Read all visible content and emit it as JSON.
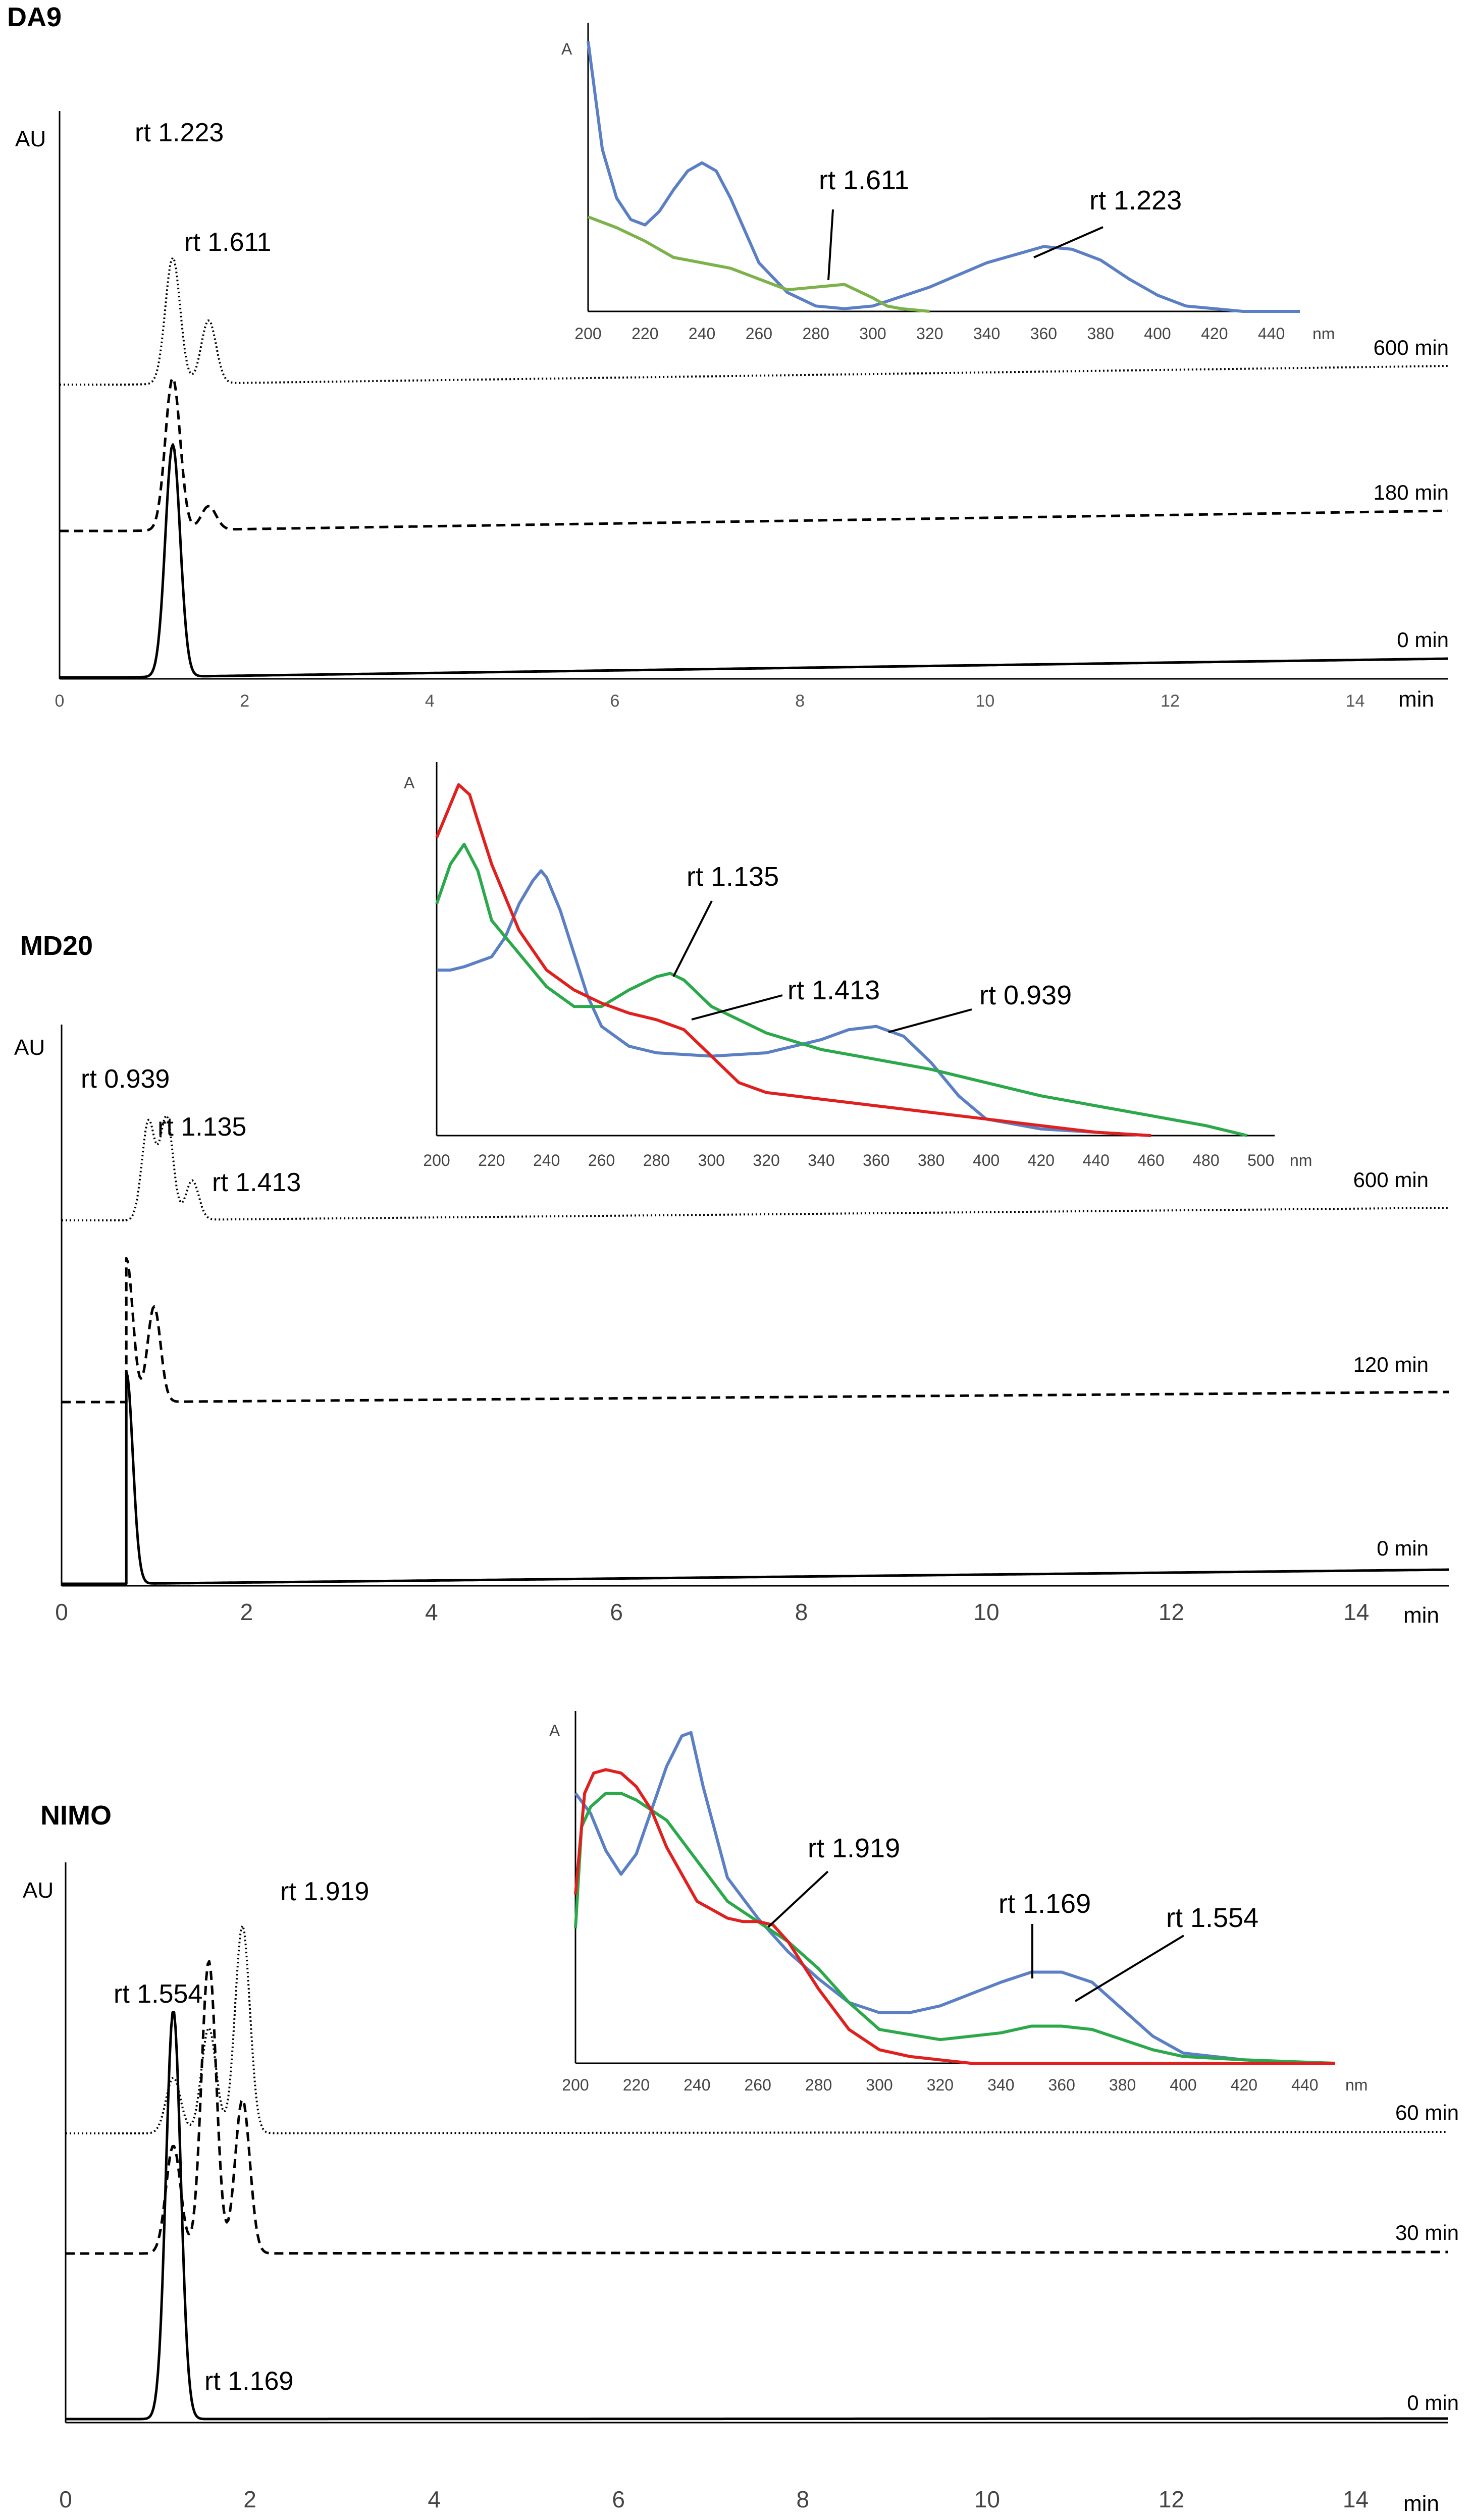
{
  "chart_data": [
    {
      "type": "line",
      "title": "DA9",
      "ylabel": "AU",
      "xlabel": "min",
      "xlim": [
        0,
        15
      ],
      "xticks": [
        "0",
        "2",
        "4",
        "6",
        "8",
        "10",
        "12",
        "14"
      ],
      "series": [
        {
          "name": "0 min",
          "style": "solid",
          "peaks": [
            {
              "rt": 1.223,
              "h": 1.0
            }
          ]
        },
        {
          "name": "180 min",
          "style": "dashed",
          "peaks": [
            {
              "rt": 1.223,
              "h": 0.58
            },
            {
              "rt": 1.611,
              "h": 0.09
            }
          ]
        },
        {
          "name": "600 min",
          "style": "dotted",
          "peaks": [
            {
              "rt": 1.223,
              "h": 0.5
            },
            {
              "rt": 1.611,
              "h": 0.25
            }
          ]
        }
      ],
      "annotations": [
        "rt 1.223",
        "rt 1.611"
      ],
      "inset": {
        "type": "line",
        "ylabel": "A",
        "xlabel": "nm",
        "xlim": [
          200,
          450
        ],
        "xticks": [
          "200",
          "220",
          "240",
          "260",
          "280",
          "300",
          "320",
          "340",
          "360",
          "380",
          "400",
          "420",
          "440"
        ],
        "series": [
          {
            "name": "rt 1.223",
            "color": "#5b7fc4",
            "x": [
              200,
              205,
              210,
              215,
              220,
              225,
              230,
              235,
              240,
              245,
              250,
              255,
              260,
              270,
              280,
              290,
              300,
              320,
              340,
              360,
              370,
              380,
              390,
              400,
              410,
              420,
              430,
              440,
              450
            ],
            "y": [
              1.0,
              0.6,
              0.42,
              0.34,
              0.32,
              0.37,
              0.45,
              0.52,
              0.55,
              0.52,
              0.42,
              0.3,
              0.18,
              0.07,
              0.02,
              0.01,
              0.02,
              0.09,
              0.18,
              0.24,
              0.23,
              0.19,
              0.12,
              0.06,
              0.02,
              0.01,
              0.0,
              0.0,
              0.0
            ]
          },
          {
            "name": "rt 1.611",
            "color": "#7db24a",
            "x": [
              200,
              210,
              220,
              230,
              240,
              250,
              260,
              270,
              280,
              290,
              300,
              305,
              310,
              320
            ],
            "y": [
              0.35,
              0.31,
              0.26,
              0.2,
              0.18,
              0.16,
              0.12,
              0.08,
              0.09,
              0.1,
              0.05,
              0.02,
              0.01,
              0.0
            ]
          }
        ],
        "annotations": [
          "rt 1.611",
          "rt 1.223"
        ]
      }
    },
    {
      "type": "line",
      "title": "MD20",
      "ylabel": "AU",
      "xlabel": "min",
      "xlim": [
        0,
        15
      ],
      "xticks": [
        "0",
        "2",
        "4",
        "6",
        "8",
        "10",
        "12",
        "14"
      ],
      "series": [
        {
          "name": "0 min",
          "style": "solid",
          "peaks": [
            {
              "rt": 0.7,
              "h": 1.0
            }
          ]
        },
        {
          "name": "120 min",
          "style": "dashed",
          "peaks": [
            {
              "rt": 0.7,
              "h": 0.95
            },
            {
              "rt": 1.0,
              "h": 0.63
            }
          ]
        },
        {
          "name": "600 min",
          "style": "dotted",
          "peaks": [
            {
              "rt": 0.939,
              "h": 0.75
            },
            {
              "rt": 1.135,
              "h": 0.78
            },
            {
              "rt": 1.413,
              "h": 0.3
            }
          ]
        }
      ],
      "annotations": [
        "rt 0.939",
        "rt 1.135",
        "rt 1.413"
      ],
      "inset": {
        "type": "line",
        "ylabel": "A",
        "xlabel": "nm",
        "xlim": [
          200,
          505
        ],
        "xticks": [
          "200",
          "220",
          "240",
          "260",
          "280",
          "300",
          "320",
          "340",
          "360",
          "380",
          "400",
          "420",
          "440",
          "460",
          "480",
          "500"
        ],
        "series": [
          {
            "name": "rt 0.939",
            "color": "#5b7fc4",
            "x": [
              200,
              205,
              210,
              220,
              225,
              230,
              235,
              238,
              240,
              245,
              250,
              255,
              260,
              270,
              280,
              300,
              320,
              340,
              350,
              360,
              370,
              380,
              390,
              400,
              420,
              440,
              460
            ],
            "y": [
              0.5,
              0.5,
              0.51,
              0.54,
              0.6,
              0.7,
              0.77,
              0.8,
              0.78,
              0.68,
              0.55,
              0.42,
              0.33,
              0.27,
              0.25,
              0.24,
              0.25,
              0.29,
              0.32,
              0.33,
              0.3,
              0.22,
              0.12,
              0.05,
              0.02,
              0.01,
              0.0
            ]
          },
          {
            "name": "rt 1.135",
            "color": "#2aa84a",
            "x": [
              200,
              205,
              210,
              215,
              220,
              230,
              240,
              250,
              260,
              270,
              280,
              285,
              290,
              300,
              320,
              340,
              360,
              380,
              400,
              420,
              440,
              460,
              480,
              495
            ],
            "y": [
              0.7,
              0.82,
              0.88,
              0.8,
              0.65,
              0.55,
              0.45,
              0.39,
              0.39,
              0.44,
              0.48,
              0.49,
              0.47,
              0.39,
              0.31,
              0.26,
              0.23,
              0.2,
              0.16,
              0.12,
              0.09,
              0.06,
              0.03,
              0.0
            ]
          },
          {
            "name": "rt 1.413",
            "color": "#e0201e",
            "x": [
              200,
              205,
              208,
              212,
              215,
              220,
              230,
              240,
              250,
              260,
              270,
              280,
              290,
              300,
              310,
              320,
              340,
              360,
              380,
              400,
              420,
              440,
              460
            ],
            "y": [
              0.9,
              1.0,
              1.06,
              1.03,
              0.95,
              0.82,
              0.62,
              0.5,
              0.44,
              0.4,
              0.37,
              0.35,
              0.32,
              0.24,
              0.16,
              0.13,
              0.11,
              0.09,
              0.07,
              0.05,
              0.03,
              0.01,
              0.0
            ]
          }
        ],
        "annotations": [
          "rt 1.135",
          "rt 1.413",
          "rt 0.939"
        ]
      }
    },
    {
      "type": "line",
      "title": "NIMO",
      "ylabel": "AU",
      "xlabel": "min",
      "xlim": [
        0,
        15
      ],
      "xticks": [
        "0",
        "2",
        "4",
        "6",
        "8",
        "10",
        "12",
        "14"
      ],
      "series": [
        {
          "name": "0 min",
          "style": "solid",
          "peaks": [
            {
              "rt": 1.169,
              "h": 1.0
            }
          ]
        },
        {
          "name": "30 min",
          "style": "dashed",
          "peaks": [
            {
              "rt": 1.169,
              "h": 0.35
            },
            {
              "rt": 1.554,
              "h": 0.95
            },
            {
              "rt": 1.919,
              "h": 0.5
            }
          ]
        },
        {
          "name": "60 min",
          "style": "dotted",
          "peaks": [
            {
              "rt": 1.169,
              "h": 0.19
            },
            {
              "rt": 1.554,
              "h": 0.36
            },
            {
              "rt": 1.919,
              "h": 0.71
            }
          ]
        }
      ],
      "annotations": [
        "rt 1.919",
        "rt 1.554",
        "rt 1.169"
      ],
      "inset": {
        "type": "line",
        "ylabel": "A",
        "xlabel": "nm",
        "xlim": [
          200,
          450
        ],
        "xticks": [
          "200",
          "220",
          "240",
          "260",
          "280",
          "300",
          "320",
          "340",
          "360",
          "380",
          "400",
          "420",
          "440"
        ],
        "series": [
          {
            "name": "rt 1.169",
            "color": "#5b7fc4",
            "x": [
              200,
              205,
              210,
              215,
              220,
              225,
              230,
              235,
              238,
              242,
              250,
              260,
              270,
              280,
              290,
              300,
              310,
              320,
              340,
              350,
              360,
              370,
              380,
              390,
              400,
              420,
              440,
              450
            ],
            "y": [
              0.8,
              0.74,
              0.63,
              0.56,
              0.62,
              0.75,
              0.88,
              0.97,
              0.98,
              0.82,
              0.55,
              0.43,
              0.33,
              0.25,
              0.18,
              0.15,
              0.15,
              0.17,
              0.24,
              0.27,
              0.27,
              0.24,
              0.16,
              0.08,
              0.03,
              0.01,
              0.0,
              0.0
            ]
          },
          {
            "name": "rt 1.554",
            "color": "#2aa84a",
            "x": [
              200,
              202,
              205,
              210,
              215,
              220,
              230,
              240,
              250,
              260,
              270,
              280,
              290,
              300,
              320,
              340,
              350,
              360,
              370,
              380,
              390,
              400,
              420,
              450
            ],
            "y": [
              0.4,
              0.7,
              0.76,
              0.8,
              0.8,
              0.78,
              0.72,
              0.6,
              0.48,
              0.42,
              0.36,
              0.28,
              0.18,
              0.1,
              0.07,
              0.09,
              0.11,
              0.11,
              0.1,
              0.07,
              0.04,
              0.02,
              0.01,
              0.0
            ]
          },
          {
            "name": "rt 1.919",
            "color": "#e0201e",
            "x": [
              200,
              203,
              206,
              210,
              215,
              220,
              225,
              230,
              240,
              250,
              255,
              260,
              265,
              270,
              280,
              290,
              300,
              310,
              320,
              330,
              340,
              350,
              360,
              450
            ],
            "y": [
              0.5,
              0.8,
              0.86,
              0.87,
              0.86,
              0.82,
              0.75,
              0.64,
              0.48,
              0.43,
              0.42,
              0.42,
              0.41,
              0.36,
              0.22,
              0.1,
              0.04,
              0.02,
              0.01,
              0.0,
              0.0,
              0.0,
              0.0,
              0.0
            ]
          }
        ],
        "annotations": [
          "rt 1.919",
          "rt 1.169",
          "rt 1.554"
        ]
      }
    }
  ]
}
